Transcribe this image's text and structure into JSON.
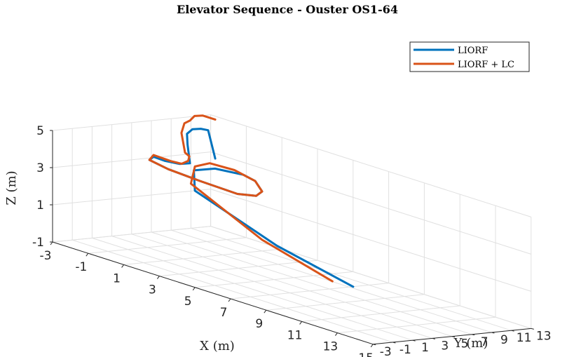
{
  "chart_data": {
    "type": "line",
    "title": "Elevator Sequence - Ouster OS1-64",
    "xlabel": "X (m)",
    "ylabel": "Y (m)",
    "zlabel": "Z (m)",
    "xlim": [
      -3,
      15
    ],
    "ylim": [
      -3,
      13
    ],
    "zlim": [
      -1,
      5
    ],
    "xticks": [
      "-3",
      "-1",
      "1",
      "3",
      "5",
      "7",
      "9",
      "11",
      "13",
      "15"
    ],
    "yticks": [
      "-3",
      "-1",
      "1",
      "3",
      "5",
      "7",
      "9",
      "11",
      "13"
    ],
    "zticks": [
      "-1",
      "1",
      "3",
      "5"
    ],
    "grid": true,
    "legend_position": "top-right",
    "series": [
      {
        "name": "LIORF",
        "color": "#0072BD",
        "x": [
          12.5,
          6.0,
          -1.0,
          -2.0,
          -1.2,
          0.5,
          2.0,
          3.5,
          4.0,
          3.5,
          1.5,
          -0.5,
          -2.0,
          -2.6,
          -2.4,
          -1.8,
          -1.5,
          -1.8,
          -2.0,
          -1.8,
          -1.5,
          -1.2,
          -0.8
        ],
        "y": [
          -0.5,
          3.5,
          7.8,
          9.5,
          10.2,
          10.0,
          8.5,
          6.5,
          5.0,
          4.0,
          3.8,
          4.2,
          5.0,
          6.5,
          7.3,
          7.7,
          8.2,
          8.5,
          8.8,
          9.0,
          9.3,
          9.5,
          9.5
        ],
        "z": [
          1.2,
          1.2,
          1.8,
          2.5,
          2.8,
          3.0,
          3.2,
          3.2,
          3.2,
          3.2,
          3.3,
          3.3,
          3.3,
          3.2,
          3.0,
          3.0,
          3.1,
          4.0,
          4.5,
          4.8,
          4.9,
          4.9,
          3.5
        ]
      },
      {
        "name": "LIORF + LC",
        "color": "#D95319",
        "x": [
          11.5,
          5.0,
          -1.5,
          -2.0,
          -1.5,
          0.0,
          2.0,
          3.5,
          4.0,
          3.5,
          1.5,
          -0.5,
          -2.0,
          -2.6,
          -2.4,
          -2.3,
          -1.8,
          -1.6,
          -1.7,
          -2.0,
          -2.2,
          -2.2,
          -2.0,
          -1.8,
          -1.5,
          -0.8
        ],
        "y": [
          -0.8,
          3.8,
          8.3,
          9.6,
          10.2,
          10.0,
          8.5,
          6.5,
          5.0,
          4.0,
          3.8,
          4.2,
          5.0,
          6.5,
          7.3,
          7.7,
          7.9,
          8.2,
          8.5,
          8.6,
          8.6,
          8.9,
          9.1,
          9.2,
          9.5,
          9.5
        ],
        "z": [
          1.2,
          1.2,
          2.0,
          2.7,
          3.0,
          3.1,
          3.2,
          3.2,
          3.2,
          3.2,
          3.3,
          3.3,
          3.3,
          3.3,
          3.1,
          3.0,
          3.0,
          3.2,
          3.4,
          3.5,
          4.5,
          5.0,
          5.2,
          5.5,
          5.6,
          5.6
        ]
      }
    ]
  }
}
